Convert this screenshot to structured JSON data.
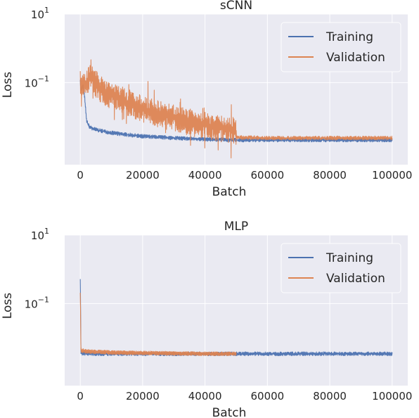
{
  "chart_data": [
    {
      "type": "line",
      "title": "sCNN",
      "xlabel": "Batch",
      "ylabel": "Loss",
      "yscale": "log",
      "xlim": [
        -5000,
        105000
      ],
      "ylim": [
        0.0004,
        10
      ],
      "xticks": [
        0,
        20000,
        40000,
        60000,
        80000,
        100000
      ],
      "yticks": [
        {
          "base": "10",
          "exp": "1",
          "value": 10
        },
        {
          "base": "10",
          "exp": "−1",
          "value": 0.1
        }
      ],
      "grid": true,
      "legend": "top-right",
      "series": [
        {
          "name": "Training",
          "color": "#4c72b0",
          "x": [
            0,
            200,
            500,
            1000,
            1500,
            2000,
            2500,
            3000,
            4000,
            6000,
            8000,
            10000,
            15000,
            20000,
            30000,
            40000,
            50000,
            60000,
            70000,
            80000,
            90000,
            100000
          ],
          "y": [
            0.12,
            0.06,
            0.07,
            0.08,
            0.03,
            0.008,
            0.006,
            0.005,
            0.0045,
            0.004,
            0.0037,
            0.0034,
            0.003,
            0.0027,
            0.0024,
            0.0022,
            0.0021,
            0.0021,
            0.0021,
            0.0021,
            0.0021,
            0.0021
          ]
        },
        {
          "name": "Validation",
          "color": "#dd8452",
          "x": [
            0,
            500,
            1000,
            2000,
            3000,
            3500,
            4000,
            6000,
            8000,
            10000,
            15000,
            20000,
            25000,
            30000,
            35000,
            40000,
            45000,
            50000,
            50100,
            60000,
            70000,
            80000,
            90000,
            100000
          ],
          "y": [
            0.12,
            0.09,
            0.08,
            0.1,
            0.15,
            0.2,
            0.12,
            0.07,
            0.05,
            0.04,
            0.025,
            0.017,
            0.012,
            0.009,
            0.007,
            0.0055,
            0.0045,
            0.0038,
            0.0025,
            0.0024,
            0.0024,
            0.0024,
            0.0024,
            0.0024
          ]
        }
      ]
    },
    {
      "type": "line",
      "title": "MLP",
      "xlabel": "Batch",
      "ylabel": "Loss",
      "yscale": "log",
      "xlim": [
        -5000,
        105000
      ],
      "ylim": [
        0.0004,
        10
      ],
      "xticks": [
        0,
        20000,
        40000,
        60000,
        80000,
        100000
      ],
      "yticks": [
        {
          "base": "10",
          "exp": "1",
          "value": 10
        },
        {
          "base": "10",
          "exp": "−1",
          "value": 0.1
        }
      ],
      "grid": true,
      "legend": "top-right",
      "series": [
        {
          "name": "Training",
          "color": "#4c72b0",
          "x": [
            0,
            100,
            200,
            500,
            1000,
            5000,
            10000,
            20000,
            40000,
            60000,
            80000,
            100000
          ],
          "y": [
            0.45,
            0.1,
            0.004,
            0.0036,
            0.0035,
            0.0034,
            0.0034,
            0.0034,
            0.0034,
            0.0034,
            0.0034,
            0.0034
          ]
        },
        {
          "name": "Validation",
          "color": "#dd8452",
          "x": [
            0,
            100,
            200,
            500,
            2000,
            5000,
            8000,
            10000,
            20000,
            30000,
            40000,
            50000
          ],
          "y": [
            0.2,
            0.05,
            0.0045,
            0.0042,
            0.004,
            0.0039,
            0.0038,
            0.0037,
            0.0036,
            0.0035,
            0.0034,
            0.0034
          ]
        }
      ]
    }
  ]
}
